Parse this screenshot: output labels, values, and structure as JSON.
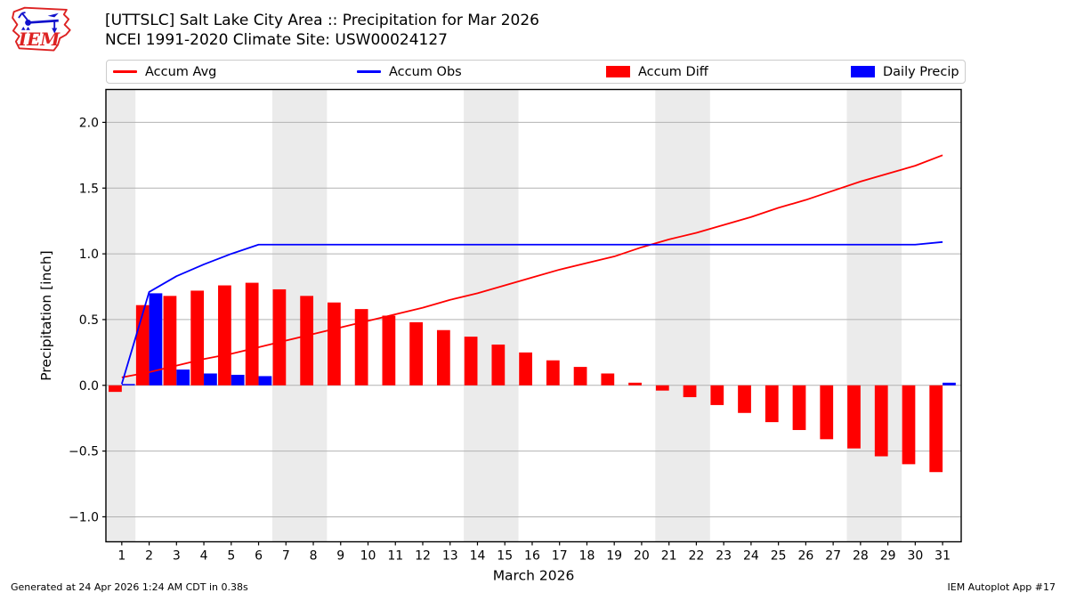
{
  "header": {
    "title_line1": "[UTTSLC] Salt Lake City Area :: Precipitation for Mar 2026",
    "title_line2": "NCEI 1991-2020 Climate Site: USW00024127",
    "logo_text": "IEM"
  },
  "legend": [
    {
      "label": "Accum Avg",
      "handle": "line",
      "color": "#ff0000"
    },
    {
      "label": "Accum Obs",
      "handle": "line",
      "color": "#0000ff"
    },
    {
      "label": "Accum Diff",
      "handle": "patch",
      "color": "#ff0000"
    },
    {
      "label": "Daily Precip",
      "handle": "patch",
      "color": "#0000ff"
    }
  ],
  "footer": {
    "left": "Generated at 24 Apr 2026 1:24 AM CDT in 0.38s",
    "right": "IEM Autoplot App #17"
  },
  "chart_data": {
    "type": "bar+line",
    "title": "[UTTSLC] Salt Lake City Area :: Precipitation for Mar 2026",
    "subtitle": "NCEI 1991-2020 Climate Site: USW00024127",
    "xlabel": "March 2026",
    "ylabel": "Precipitation [inch]",
    "x": [
      1,
      2,
      3,
      4,
      5,
      6,
      7,
      8,
      9,
      10,
      11,
      12,
      13,
      14,
      15,
      16,
      17,
      18,
      19,
      20,
      21,
      22,
      23,
      24,
      25,
      26,
      27,
      28,
      29,
      30,
      31
    ],
    "series": [
      {
        "name": "Accum Avg",
        "draw": "line",
        "color": "#ff0000",
        "values": [
          0.06,
          0.1,
          0.15,
          0.2,
          0.24,
          0.29,
          0.34,
          0.39,
          0.44,
          0.49,
          0.54,
          0.59,
          0.65,
          0.7,
          0.76,
          0.82,
          0.88,
          0.93,
          0.98,
          1.05,
          1.11,
          1.16,
          1.22,
          1.28,
          1.35,
          1.41,
          1.48,
          1.55,
          1.61,
          1.67,
          1.75
        ]
      },
      {
        "name": "Accum Obs",
        "draw": "line",
        "color": "#0000ff",
        "values": [
          0.01,
          0.71,
          0.83,
          0.92,
          1.0,
          1.07,
          1.07,
          1.07,
          1.07,
          1.07,
          1.07,
          1.07,
          1.07,
          1.07,
          1.07,
          1.07,
          1.07,
          1.07,
          1.07,
          1.07,
          1.07,
          1.07,
          1.07,
          1.07,
          1.07,
          1.07,
          1.07,
          1.07,
          1.07,
          1.07,
          1.09
        ]
      },
      {
        "name": "Accum Diff",
        "draw": "bar",
        "align": "left",
        "color": "#ff0000",
        "values": [
          -0.05,
          0.61,
          0.68,
          0.72,
          0.76,
          0.78,
          0.73,
          0.68,
          0.63,
          0.58,
          0.53,
          0.48,
          0.42,
          0.37,
          0.31,
          0.25,
          0.19,
          0.14,
          0.09,
          0.02,
          -0.04,
          -0.09,
          -0.15,
          -0.21,
          -0.28,
          -0.34,
          -0.41,
          -0.48,
          -0.54,
          -0.6,
          -0.66
        ]
      },
      {
        "name": "Daily Precip",
        "draw": "bar",
        "align": "right",
        "color": "#0000ff",
        "values": [
          0.01,
          0.7,
          0.12,
          0.09,
          0.08,
          0.07,
          0,
          0,
          0,
          0,
          0,
          0,
          0,
          0,
          0,
          0,
          0,
          0,
          0,
          0,
          0,
          0,
          0,
          0,
          0,
          0,
          0,
          0,
          0,
          0,
          0.02
        ]
      }
    ],
    "yticks": [
      2.0,
      1.5,
      1.0,
      0.5,
      0.0,
      -0.5,
      -1.0
    ],
    "ytick_labels": [
      "2.0",
      "1.5",
      "1.0",
      "0.5",
      "0.0",
      "−0.5",
      "−1.0"
    ],
    "ylim": [
      -1.19,
      2.25
    ],
    "xlim": [
      0.42,
      31.68
    ],
    "grid": true,
    "legend_position": "top, horizontal, 4 columns",
    "weekend_bands": [
      [
        0.42,
        1.5
      ],
      [
        6.5,
        8.5
      ],
      [
        13.5,
        15.5
      ],
      [
        20.5,
        22.5
      ],
      [
        27.5,
        29.5
      ]
    ],
    "band_color": "#ebebeb",
    "grid_color": "#b2b2b2",
    "bar_width_days": 0.48
  }
}
